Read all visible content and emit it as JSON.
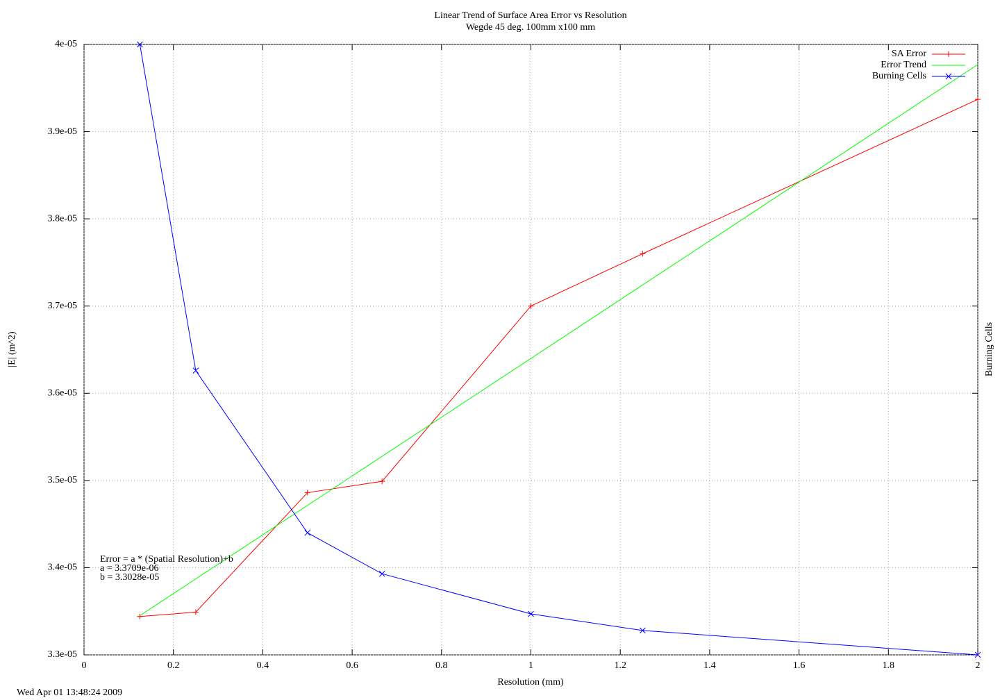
{
  "chart_data": {
    "type": "line",
    "title": "Linear Trend of Surface Area Error vs Resolution",
    "subtitle": "Wegde 45 deg. 100mm x100 mm",
    "x_label": "Resolution (mm)",
    "y_label": "|E| (m^2)",
    "y2_label": "Burning Cells",
    "timestamp": "Wed Apr 01 13:48:24 2009",
    "annotations": [
      "Error = a * (Spatial Resolution)+b",
      "a = 3.3709e-06",
      "b = 3.3028e-05"
    ],
    "xlim": [
      0,
      2
    ],
    "xticks": [
      0,
      0.2,
      0.4,
      0.6,
      0.8,
      1,
      1.2,
      1.4,
      1.6,
      1.8,
      2
    ],
    "ylim": [
      3.3e-05,
      4e-05
    ],
    "yticks": [
      {
        "value": 3.3e-05,
        "label": "3.3e-05"
      },
      {
        "value": 3.4e-05,
        "label": "3.4e-05"
      },
      {
        "value": 3.5e-05,
        "label": "3.5e-05"
      },
      {
        "value": 3.6e-05,
        "label": "3.6e-05"
      },
      {
        "value": 3.7e-05,
        "label": "3.7e-05"
      },
      {
        "value": 3.8e-05,
        "label": "3.8e-05"
      },
      {
        "value": 3.9e-05,
        "label": "3.9e-05"
      },
      {
        "value": 4e-05,
        "label": "4e-05"
      }
    ],
    "grid": true,
    "legend": "top-right",
    "series": [
      {
        "name": "SA Error",
        "color": "#ff0000",
        "marker": "plus",
        "x": [
          0.125,
          0.25,
          0.5,
          0.667,
          1,
          1.25,
          2
        ],
        "values": [
          3.344e-05,
          3.349e-05,
          3.486e-05,
          3.499e-05,
          3.7e-05,
          3.76e-05,
          3.937e-05
        ]
      },
      {
        "name": "Error Trend",
        "color": "#00ff00",
        "marker": "none",
        "x": [
          0.125,
          2
        ],
        "values": [
          3.345e-05,
          3.977e-05
        ]
      },
      {
        "name": "Burning Cells",
        "color": "#0000ff",
        "marker": "cross",
        "x": [
          0.125,
          0.25,
          0.5,
          0.667,
          1,
          1.25,
          2
        ],
        "values": [
          4e-05,
          3.626e-05,
          3.44e-05,
          3.393e-05,
          3.347e-05,
          3.328e-05,
          3.3e-05
        ]
      }
    ]
  }
}
